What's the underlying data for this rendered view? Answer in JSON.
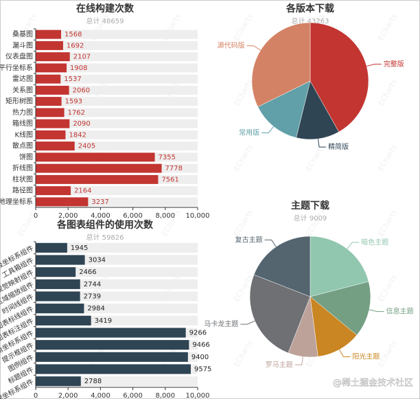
{
  "chart_data": [
    {
      "type": "bar",
      "orientation": "horizontal",
      "title": "在线构建次数",
      "subtitle": "总计 48659",
      "categories": [
        "桑基图",
        "漏斗图",
        "仪表盘图",
        "平行坐标系",
        "雷达图",
        "关系图",
        "矩形树图",
        "热力图",
        "箱线图",
        "K线图",
        "散点图",
        "饼图",
        "折线图",
        "柱状图",
        "路径图",
        "地理坐标系"
      ],
      "values": [
        1568,
        1692,
        2107,
        1908,
        1537,
        2060,
        1593,
        1762,
        2090,
        1842,
        2405,
        7355,
        7778,
        7561,
        2164,
        3237
      ],
      "color": "#c23531",
      "xlim": [
        0,
        10000
      ],
      "xticks": [
        0,
        {
          "value": 2000,
          "label": "2,000"
        },
        {
          "value": 4000,
          "label": "4,000"
        },
        {
          "value": 6000,
          "label": "6,000"
        },
        {
          "value": 8000,
          "label": "8,000"
        },
        {
          "value": 10000,
          "label": "10,000"
        }
      ]
    },
    {
      "type": "pie",
      "title": "各版本下载",
      "subtitle": "总计 43263",
      "categories": [
        "完整版",
        "精简版",
        "常用版",
        "源代码版"
      ],
      "values": [
        18100,
        5200,
        6000,
        13963
      ],
      "colors": [
        "#c23531",
        "#2f4554",
        "#61a0a8",
        "#d48265"
      ]
    },
    {
      "type": "bar",
      "orientation": "horizontal",
      "title": "各图表组件的使用次数",
      "subtitle": "总计 59826",
      "categories": [
        "极坐标系组件",
        "工具箱组件",
        "视觉映射组件",
        "区域缩放组件",
        "时间线组件",
        "图表标线组件",
        "图表标注组件",
        "直角坐标系组件",
        "提示框组件",
        "图例组件",
        "标题组件",
        "地理坐标系组件"
      ],
      "values": [
        1945,
        3034,
        2466,
        2744,
        2739,
        2984,
        3419,
        9266,
        9466,
        9400,
        9575,
        2788
      ],
      "color": "#2f4554",
      "xlim": [
        0,
        10000
      ],
      "xticks": [
        0,
        {
          "value": 2000,
          "label": "2,000"
        },
        {
          "value": 4000,
          "label": "4,000"
        },
        {
          "value": 6000,
          "label": "6,000"
        },
        {
          "value": 8000,
          "label": "8,000"
        },
        {
          "value": 10000,
          "label": "10,000"
        }
      ]
    },
    {
      "type": "pie",
      "title": "主题下载",
      "subtitle": "总计 9009",
      "categories": [
        "暗色主题",
        "信息主题",
        "阳光主题",
        "罗马主题",
        "马卡龙主题",
        "复古主题"
      ],
      "values": [
        1890,
        1350,
        1080,
        720,
        2250,
        1719
      ],
      "colors": [
        "#91c7ae",
        "#749f83",
        "#ca8622",
        "#bda29a",
        "#6e7074",
        "#546570"
      ]
    }
  ],
  "watermark": "ECharts",
  "footer_watermark": "@稀土掘金技术社区"
}
